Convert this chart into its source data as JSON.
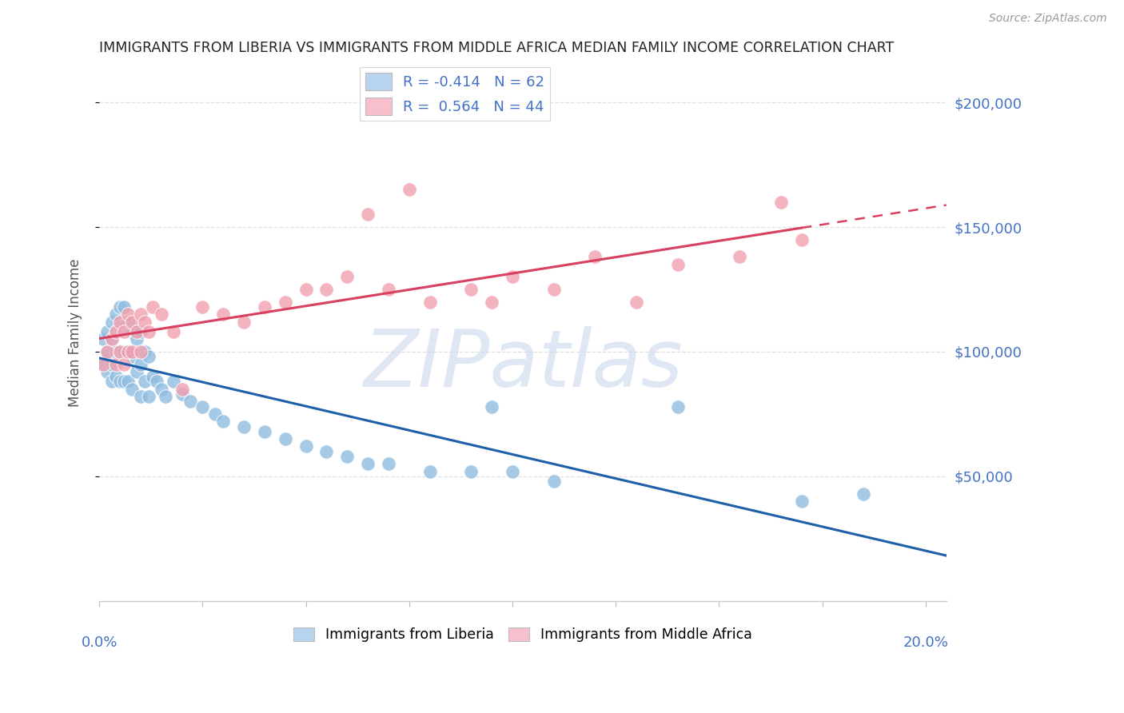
{
  "title": "IMMIGRANTS FROM LIBERIA VS IMMIGRANTS FROM MIDDLE AFRICA MEDIAN FAMILY INCOME CORRELATION CHART",
  "source": "Source: ZipAtlas.com",
  "ylabel": "Median Family Income",
  "y_tick_values": [
    50000,
    100000,
    150000,
    200000
  ],
  "y_tick_labels": [
    "$50,000",
    "$100,000",
    "$150,000",
    "$200,000"
  ],
  "xlim": [
    0.0,
    0.205
  ],
  "ylim": [
    0,
    215000
  ],
  "liberia_R": "-0.414",
  "liberia_N": "62",
  "middle_africa_R": "0.564",
  "middle_africa_N": "44",
  "watermark": "ZIPatlas",
  "liberia_dot_color": "#90bde0",
  "middle_africa_dot_color": "#f0a0b0",
  "liberia_line_color": "#1e5faa",
  "middle_africa_line_color": "#d94060",
  "liberia_legend_color": "#b8d4f0",
  "middle_africa_legend_color": "#f8c0cc",
  "background_color": "#ffffff",
  "grid_color": "#e0e0e0",
  "title_color": "#222222",
  "axis_label_color": "#4472c4",
  "watermark_color": "#ccd8ee",
  "liberia_x": [
    0.001,
    0.001,
    0.002,
    0.002,
    0.002,
    0.003,
    0.003,
    0.003,
    0.003,
    0.004,
    0.004,
    0.004,
    0.004,
    0.005,
    0.005,
    0.005,
    0.005,
    0.006,
    0.006,
    0.006,
    0.006,
    0.007,
    0.007,
    0.007,
    0.008,
    0.008,
    0.008,
    0.009,
    0.009,
    0.01,
    0.01,
    0.01,
    0.011,
    0.011,
    0.012,
    0.012,
    0.013,
    0.014,
    0.015,
    0.016,
    0.018,
    0.02,
    0.022,
    0.025,
    0.028,
    0.03,
    0.035,
    0.04,
    0.045,
    0.05,
    0.055,
    0.06,
    0.065,
    0.07,
    0.08,
    0.09,
    0.095,
    0.1,
    0.11,
    0.14,
    0.17,
    0.185
  ],
  "liberia_y": [
    105000,
    95000,
    108000,
    100000,
    92000,
    112000,
    105000,
    95000,
    88000,
    115000,
    108000,
    100000,
    90000,
    118000,
    110000,
    100000,
    88000,
    118000,
    110000,
    100000,
    88000,
    112000,
    100000,
    88000,
    108000,
    98000,
    85000,
    105000,
    92000,
    108000,
    95000,
    82000,
    100000,
    88000,
    98000,
    82000,
    90000,
    88000,
    85000,
    82000,
    88000,
    83000,
    80000,
    78000,
    75000,
    72000,
    70000,
    68000,
    65000,
    62000,
    60000,
    58000,
    55000,
    55000,
    52000,
    52000,
    78000,
    52000,
    48000,
    78000,
    40000,
    43000
  ],
  "middle_africa_x": [
    0.001,
    0.002,
    0.003,
    0.004,
    0.004,
    0.005,
    0.005,
    0.006,
    0.006,
    0.007,
    0.007,
    0.008,
    0.008,
    0.009,
    0.01,
    0.01,
    0.011,
    0.012,
    0.013,
    0.015,
    0.018,
    0.02,
    0.025,
    0.03,
    0.035,
    0.04,
    0.045,
    0.05,
    0.055,
    0.06,
    0.065,
    0.07,
    0.075,
    0.08,
    0.09,
    0.095,
    0.1,
    0.11,
    0.12,
    0.13,
    0.14,
    0.155,
    0.165,
    0.17
  ],
  "middle_africa_y": [
    95000,
    100000,
    105000,
    108000,
    95000,
    112000,
    100000,
    108000,
    95000,
    115000,
    100000,
    112000,
    100000,
    108000,
    115000,
    100000,
    112000,
    108000,
    118000,
    115000,
    108000,
    85000,
    118000,
    115000,
    112000,
    118000,
    120000,
    125000,
    125000,
    130000,
    155000,
    125000,
    165000,
    120000,
    125000,
    120000,
    130000,
    125000,
    138000,
    120000,
    135000,
    138000,
    160000,
    145000
  ]
}
